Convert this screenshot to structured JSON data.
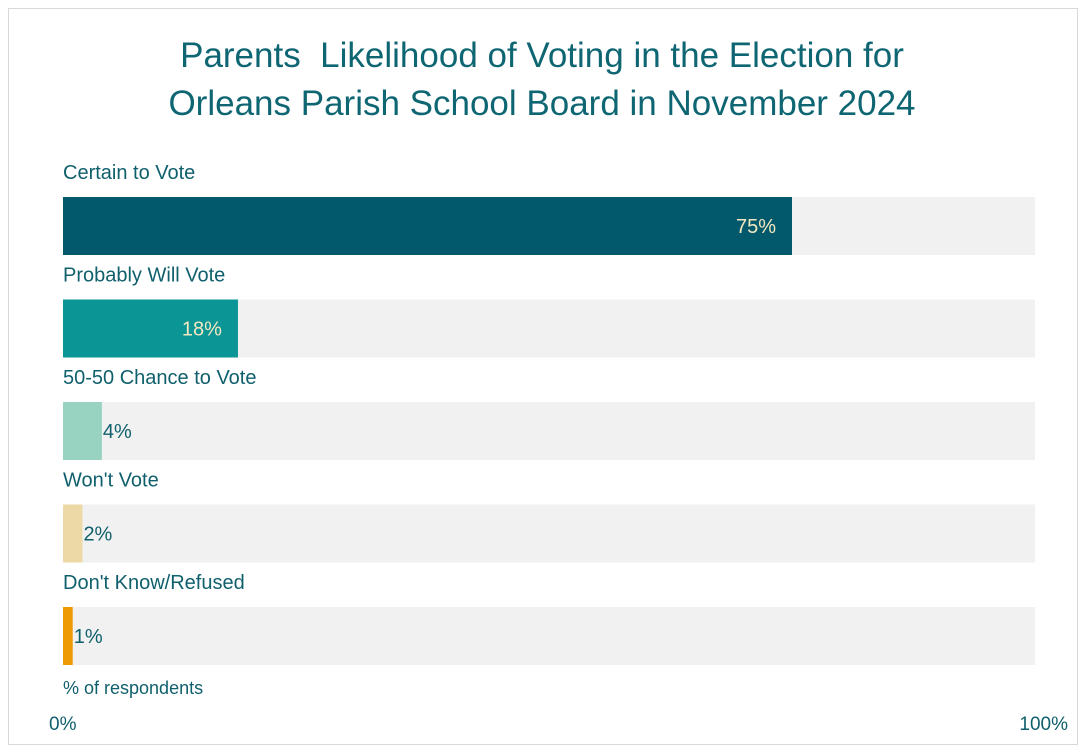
{
  "chart_data": {
    "type": "bar",
    "orientation": "horizontal",
    "title_lines": [
      "Parents  Likelihood of Voting in the Election for",
      "Orleans Parish School Board in November 2024"
    ],
    "categories": [
      "Certain to Vote",
      "Probably Will Vote",
      "50-50 Chance to Vote",
      "Won't Vote",
      "Don't Know/Refused"
    ],
    "values": [
      75,
      18,
      4,
      2,
      1
    ],
    "value_labels": [
      "75%",
      "18%",
      "4%",
      "2%",
      "1%"
    ],
    "bar_colors": [
      "#02596b",
      "#0b9595",
      "#98d3c1",
      "#ecd9a6",
      "#ee9a07"
    ],
    "value_label_colors": [
      "#f3e7c0",
      "#f3e7c0",
      "#0f5f6c",
      "#0f5f6c",
      "#0f5f6c"
    ],
    "track_color": "#f1f1f1",
    "xlabel": "% of respondents",
    "xlim": [
      0,
      100
    ],
    "tick_labels": [
      "0%",
      "100%"
    ],
    "grid": false,
    "legend": "none"
  }
}
